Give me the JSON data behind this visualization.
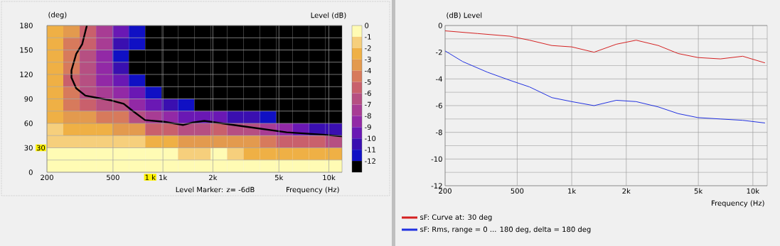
{
  "chart_data": [
    {
      "type": "heatmap",
      "ylabel": "(deg)",
      "xlabel": "Frequency  (Hz)",
      "clabel": "Level  (dB)",
      "x": [
        224,
        281,
        353,
        443,
        556,
        698,
        876,
        1100,
        1381,
        1733,
        2175,
        2730,
        3427,
        4302,
        5400,
        6778,
        8508,
        10680
      ],
      "y": [
        172.5,
        157.5,
        142.5,
        127.5,
        112.5,
        97.5,
        82.5,
        67.5,
        52.5,
        37.5,
        22.5,
        7.5
      ],
      "cells": [
        [
          -2.5,
          -3.5,
          -5.5,
          -7.5,
          -9.5,
          -11.5,
          -12.5,
          -12.5,
          -12.5,
          -12.5,
          -12.5,
          -12.5,
          -12.5,
          -12.5,
          -12.5,
          -12.5,
          -12.5,
          -12.5
        ],
        [
          -2.5,
          -4.5,
          -5.5,
          -7.5,
          -10.5,
          -11.5,
          -12.5,
          -12.5,
          -12.5,
          -12.5,
          -12.5,
          -12.5,
          -12.5,
          -12.5,
          -12.5,
          -12.5,
          -12.5,
          -12.5
        ],
        [
          -2.5,
          -4.5,
          -6.5,
          -8.5,
          -11.5,
          -12.5,
          -12.5,
          -12.5,
          -12.5,
          -12.5,
          -12.5,
          -12.5,
          -12.5,
          -12.5,
          -12.5,
          -12.5,
          -12.5,
          -12.5
        ],
        [
          -2.5,
          -4.5,
          -6.5,
          -8.5,
          -10.5,
          -12.5,
          -12.5,
          -12.5,
          -12.5,
          -12.5,
          -12.5,
          -12.5,
          -12.5,
          -12.5,
          -12.5,
          -12.5,
          -12.5,
          -12.5
        ],
        [
          -2.5,
          -5.5,
          -6.5,
          -8.5,
          -9.5,
          -11.5,
          -12.5,
          -12.5,
          -12.5,
          -12.5,
          -12.5,
          -12.5,
          -12.5,
          -12.5,
          -12.5,
          -12.5,
          -12.5,
          -12.5
        ],
        [
          -2.5,
          -4.5,
          -6.5,
          -7.5,
          -8.5,
          -9.5,
          -11.5,
          -12.5,
          -12.5,
          -12.5,
          -12.5,
          -12.5,
          -12.5,
          -12.5,
          -12.5,
          -12.5,
          -12.5,
          -12.5
        ],
        [
          -2.5,
          -4.5,
          -5.5,
          -6.5,
          -6.5,
          -8.5,
          -9.5,
          -10.5,
          -11.5,
          -12.5,
          -12.5,
          -12.5,
          -12.5,
          -12.5,
          -12.5,
          -12.5,
          -12.5,
          -12.5
        ],
        [
          -2.5,
          -3.5,
          -3.5,
          -4.5,
          -4.5,
          -6.5,
          -7.5,
          -8.5,
          -9.5,
          -9.5,
          -9.5,
          -10.5,
          -10.5,
          -11.5,
          -12.5,
          -12.5,
          -12.5,
          -12.5
        ],
        [
          -1.5,
          -2.5,
          -2.5,
          -2.5,
          -3.5,
          -3.5,
          -5.5,
          -5.5,
          -6.5,
          -6.5,
          -5.5,
          -6.5,
          -6.5,
          -7.5,
          -8.5,
          -9.5,
          -10.5,
          -10.5
        ],
        [
          -1.5,
          -1.5,
          -1.5,
          -1.5,
          -1.5,
          -1.5,
          -2.5,
          -2.5,
          -3.5,
          -3.5,
          -3.5,
          -3.5,
          -3.5,
          -4.5,
          -5.5,
          -5.5,
          -5.5,
          -6.5
        ],
        [
          -0.5,
          -0.5,
          -0.5,
          -0.5,
          -0.5,
          -0.5,
          -0.5,
          -0.5,
          -1.5,
          -1.5,
          -0.5,
          -1.5,
          -2.5,
          -2.5,
          -2.5,
          -2.5,
          -2.5,
          -2.5
        ],
        [
          -0.5,
          -0.5,
          -0.5,
          -0.5,
          -0.5,
          -0.5,
          -0.5,
          -0.5,
          -0.5,
          -0.5,
          -0.5,
          -0.5,
          -0.5,
          -0.5,
          -0.5,
          -0.5,
          -0.5,
          -0.5
        ]
      ],
      "colors": [
        "#fffbb4",
        "#f6cf7c",
        "#efb045",
        "#e39a4e",
        "#d77a5c",
        "#c9606c",
        "#b64f82",
        "#a83c94",
        "#9229a6",
        "#6a18b4",
        "#3a0fb0",
        "#1010c4",
        "#000000"
      ],
      "clim": [
        -13,
        0
      ],
      "cticks": [
        0,
        -1,
        -2,
        -3,
        -4,
        -5,
        -6,
        -7,
        -8,
        -9,
        -10,
        -11,
        -12
      ],
      "xlim": [
        200,
        12000
      ],
      "ylim": [
        0,
        180
      ],
      "log": "x",
      "grid": true,
      "xticks": [
        200,
        500,
        {
          "value": 1000,
          "label": "1k"
        },
        {
          "value": 2000,
          "label": "2k"
        },
        {
          "value": 5000,
          "label": "5k"
        },
        {
          "value": 10000,
          "label": "10k"
        }
      ],
      "yticks": [
        0,
        30,
        60,
        90,
        120,
        150,
        180
      ],
      "series": [
        {
          "type": "line",
          "color": "#000000",
          "x": [
            348,
            326,
            300,
            281,
            281,
            300,
            341,
            491,
            580,
            660,
            780,
            1014,
            1320,
            1502,
            1775,
            2906,
            5569,
            9464,
            12000
          ],
          "values": [
            180,
            157,
            145,
            125,
            116,
            103,
            94,
            88,
            84,
            75,
            64,
            62,
            58,
            61,
            63,
            57,
            49,
            46,
            44
          ]
        }
      ],
      "annotations": [
        "Level Marker:  z= -6dB",
        {
          "text": "30",
          "y": 30
        },
        "1 k"
      ]
    },
    {
      "type": "line",
      "ylabel": "(dB)  Level",
      "xlabel": "Frequency  (Hz)",
      "xlim": [
        200,
        12000
      ],
      "ylim": [
        -12,
        0
      ],
      "log": "x",
      "grid": true,
      "legend": "bottom",
      "xticks": [
        200,
        500,
        {
          "value": 1000,
          "label": "1k"
        },
        {
          "value": 2000,
          "label": "2k"
        },
        {
          "value": 5000,
          "label": "5k"
        },
        {
          "value": 10000,
          "label": "10k"
        }
      ],
      "yticks": [
        0,
        -2,
        -4,
        -6,
        -8,
        -10,
        -12
      ],
      "series": [
        {
          "name": "sF: Curve at: 30 deg",
          "color": "#d42020",
          "x": [
            200,
            302,
            455,
            585,
            777,
            1000,
            1328,
            1763,
            2268,
            3010,
            3872,
            4985,
            6619,
            8790,
            11670
          ],
          "values": [
            -0.4,
            -0.6,
            -0.8,
            -1.1,
            -1.5,
            -1.6,
            -2.0,
            -1.4,
            -1.1,
            -1.5,
            -2.1,
            -2.4,
            -2.5,
            -2.3,
            -2.8
          ]
        },
        {
          "name": "sF: Rms, range = 0 ... 180 deg, delta = 180 deg",
          "color": "#2030e0",
          "x": [
            200,
            250,
            343,
            455,
            585,
            777,
            1000,
            1328,
            1763,
            2268,
            3010,
            3872,
            4985,
            6619,
            8790,
            11670
          ],
          "values": [
            -1.9,
            -2.7,
            -3.5,
            -4.1,
            -4.6,
            -5.4,
            -5.7,
            -6.0,
            -5.6,
            -5.7,
            -6.1,
            -6.6,
            -6.9,
            -7.0,
            -7.1,
            -7.3
          ]
        }
      ]
    }
  ]
}
